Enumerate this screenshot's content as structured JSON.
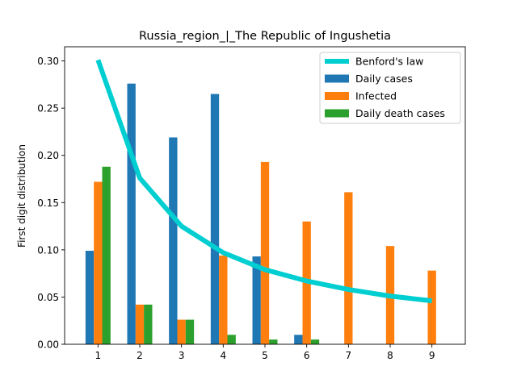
{
  "chart_data": {
    "type": "bar",
    "title": "Russia_region_|_The Republic of Ingushetia",
    "xlabel": "",
    "ylabel": "First digit distribution",
    "categories": [
      "1",
      "2",
      "3",
      "4",
      "5",
      "6",
      "7",
      "8",
      "9"
    ],
    "x": [
      1,
      2,
      3,
      4,
      5,
      6,
      7,
      8,
      9
    ],
    "ylim": [
      0,
      0.3
    ],
    "yticks": [
      0.0,
      0.05,
      0.1,
      0.15,
      0.2,
      0.25,
      0.3
    ],
    "ytick_labels": [
      "0.00",
      "0.05",
      "0.10",
      "0.15",
      "0.20",
      "0.25",
      "0.30"
    ],
    "legend_position": "top-right",
    "line": {
      "name": "Benford's law",
      "color": "#00CED1",
      "values": [
        0.301,
        0.176,
        0.125,
        0.097,
        0.079,
        0.067,
        0.058,
        0.051,
        0.046
      ]
    },
    "series": [
      {
        "name": "Daily cases",
        "color": "#1f77b4",
        "values": [
          0.099,
          0.276,
          0.219,
          0.265,
          0.093,
          0.01,
          0.0,
          0.0,
          0.0
        ]
      },
      {
        "name": "Infected",
        "color": "#ff7f0e",
        "values": [
          0.172,
          0.042,
          0.026,
          0.094,
          0.193,
          0.13,
          0.161,
          0.104,
          0.078
        ]
      },
      {
        "name": "Daily death cases",
        "color": "#2ca02c",
        "values": [
          0.188,
          0.042,
          0.026,
          0.01,
          0.005,
          0.005,
          0.0,
          0.0,
          0.0
        ]
      }
    ]
  }
}
